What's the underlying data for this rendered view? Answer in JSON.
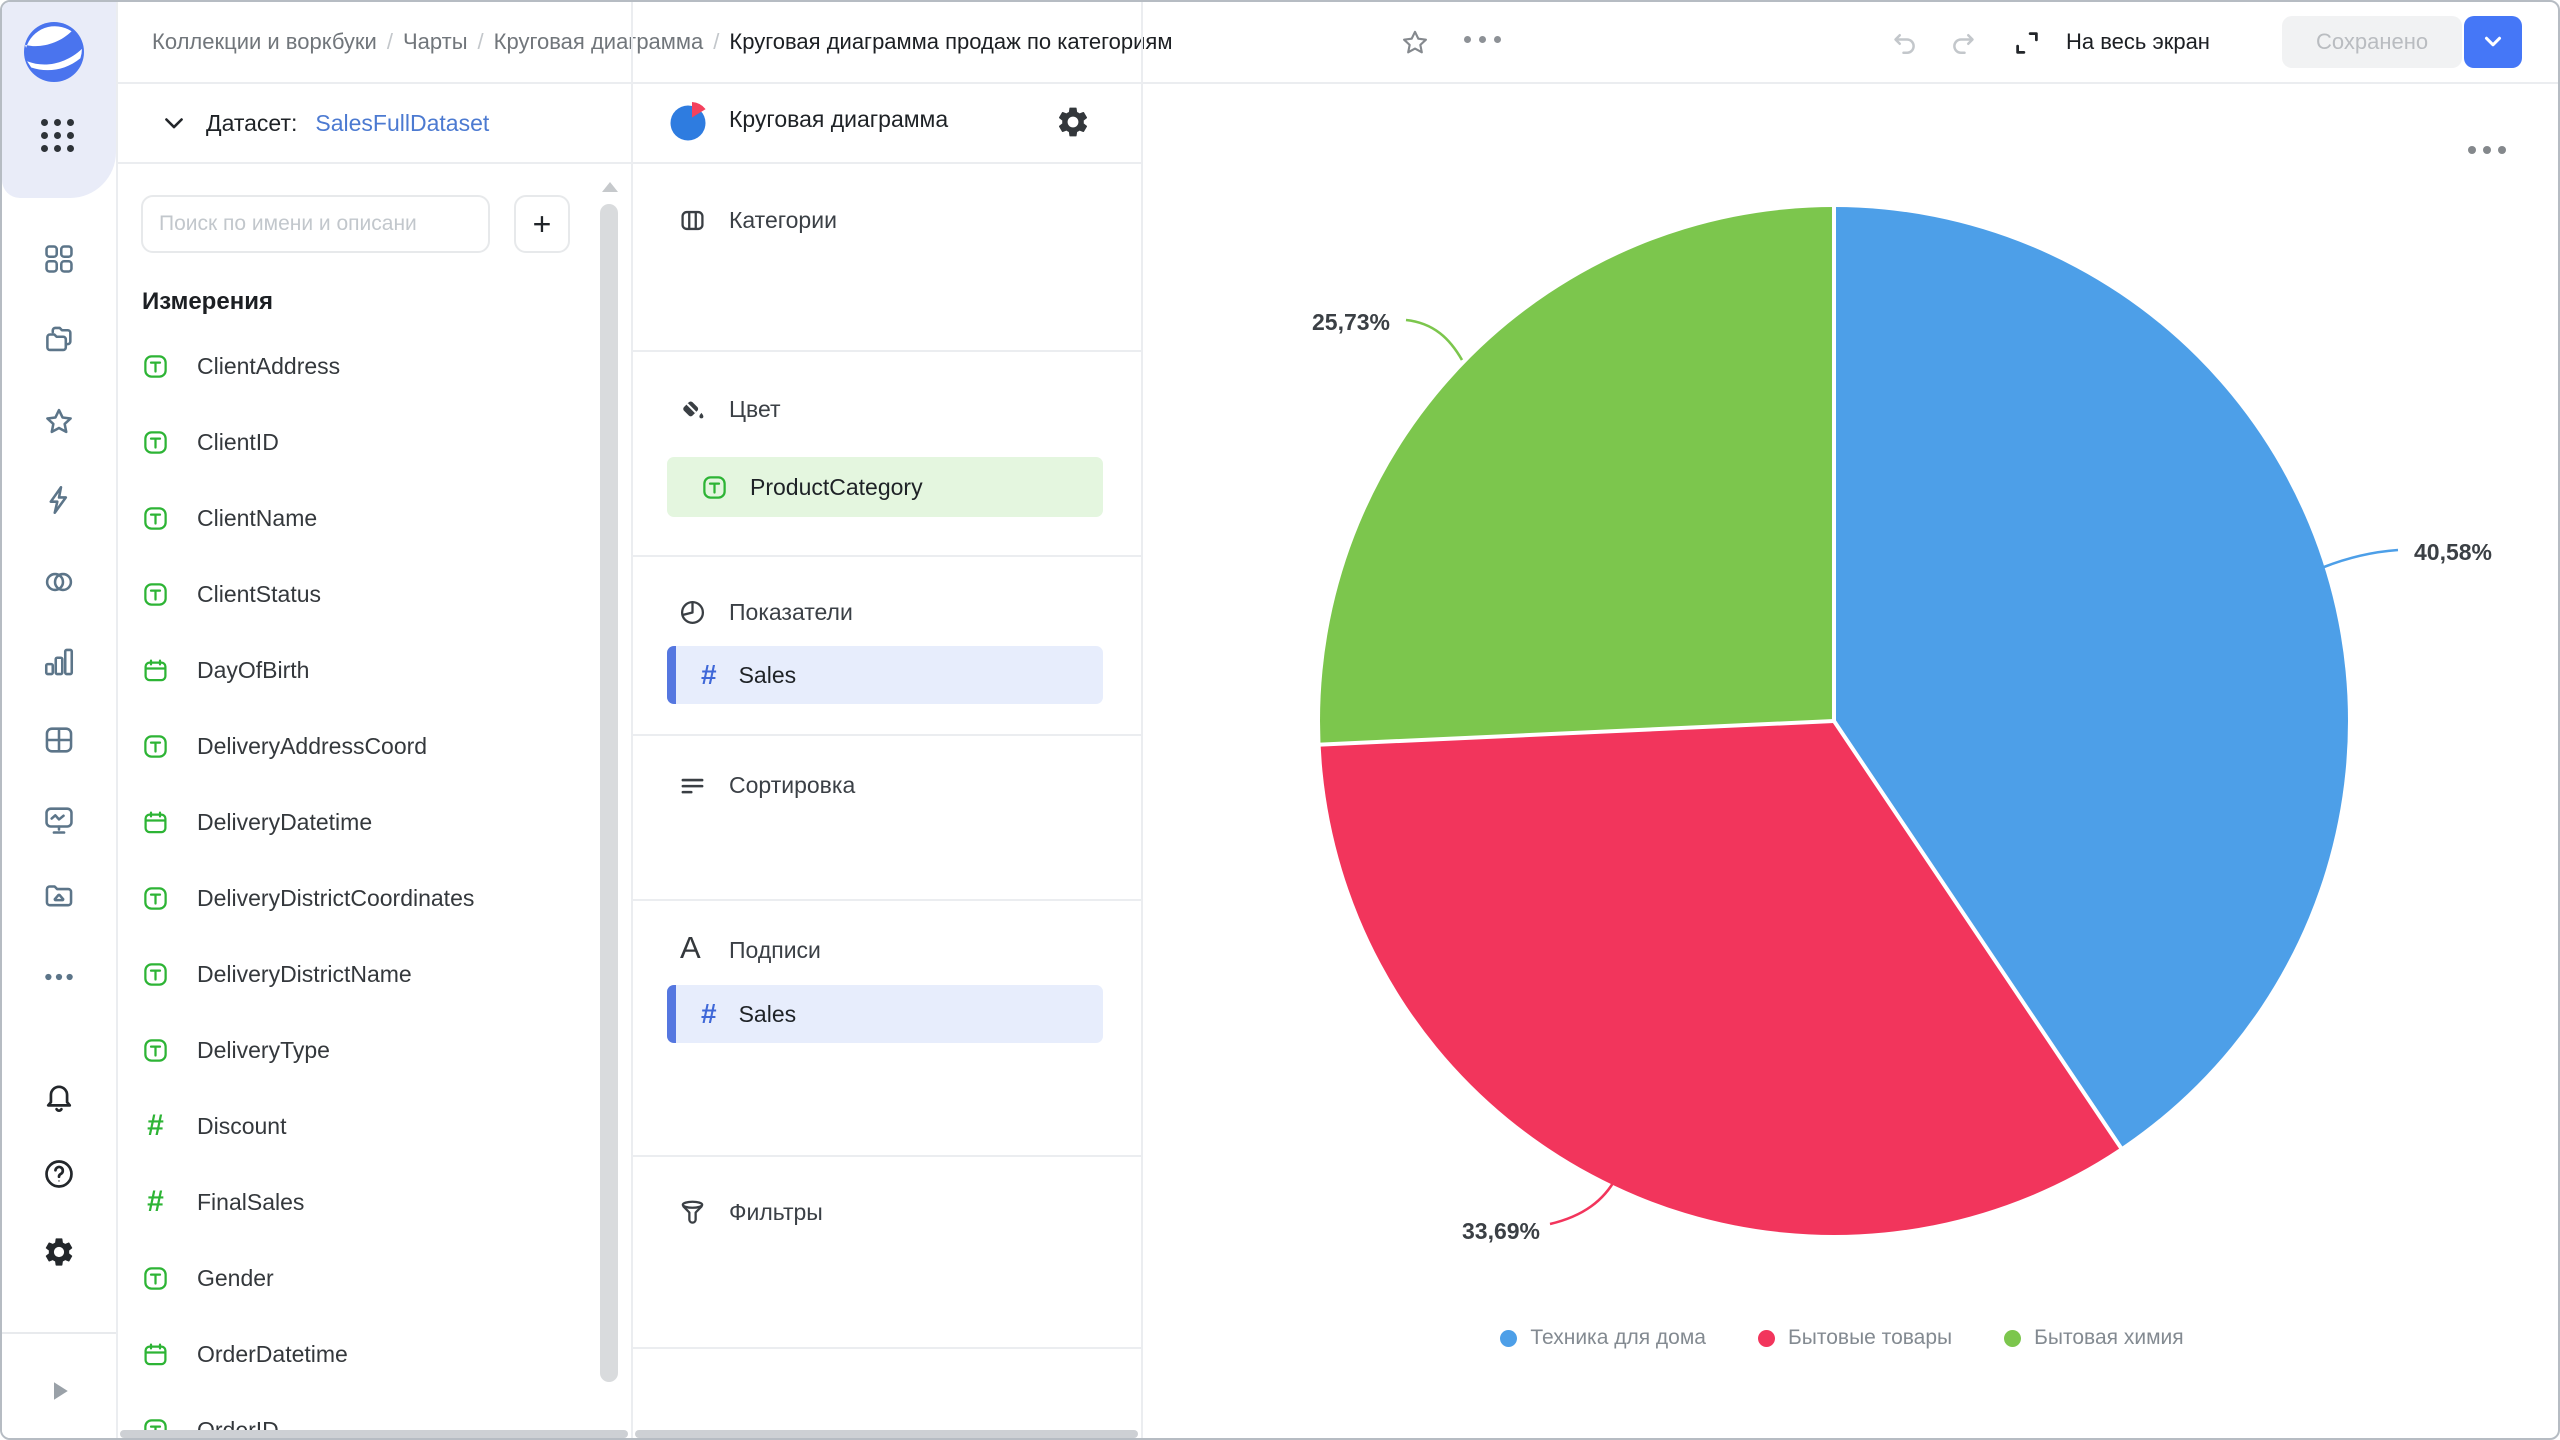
{
  "header": {
    "breadcrumbs": [
      "Коллекции и воркбуки",
      "Чарты",
      "Круговая диаграмма"
    ],
    "current": "Круговая диаграмма продаж по категориям",
    "fullscreen_label": "На весь экран",
    "saved_button": "Сохранено"
  },
  "dataset_panel": {
    "label": "Датасет:",
    "dataset_name": "SalesFullDataset",
    "search_placeholder": "Поиск по имени и описани",
    "section_title": "Измерения",
    "fields": [
      {
        "name": "ClientAddress",
        "type": "text"
      },
      {
        "name": "ClientID",
        "type": "text"
      },
      {
        "name": "ClientName",
        "type": "text"
      },
      {
        "name": "ClientStatus",
        "type": "text"
      },
      {
        "name": "DayOfBirth",
        "type": "date"
      },
      {
        "name": "DeliveryAddressCoord",
        "type": "text"
      },
      {
        "name": "DeliveryDatetime",
        "type": "date"
      },
      {
        "name": "DeliveryDistrictCoordinates",
        "type": "text"
      },
      {
        "name": "DeliveryDistrictName",
        "type": "text"
      },
      {
        "name": "DeliveryType",
        "type": "text"
      },
      {
        "name": "Discount",
        "type": "number"
      },
      {
        "name": "FinalSales",
        "type": "number"
      },
      {
        "name": "Gender",
        "type": "text"
      },
      {
        "name": "OrderDatetime",
        "type": "date"
      },
      {
        "name": "OrderID",
        "type": "text"
      }
    ]
  },
  "config_panel": {
    "chart_type": "Круговая диаграмма",
    "sections": {
      "categories": {
        "label": "Категории"
      },
      "color": {
        "label": "Цвет",
        "field": "ProductCategory",
        "field_type": "text"
      },
      "measures": {
        "label": "Показатели",
        "field": "Sales",
        "field_type": "number"
      },
      "sorting": {
        "label": "Сортировка"
      },
      "labels": {
        "label": "Подписи",
        "field": "Sales",
        "field_type": "number"
      },
      "filters": {
        "label": "Фильтры"
      }
    }
  },
  "icons": {
    "add_field": "+",
    "labels_section_glyph": "A"
  },
  "colors": {
    "accent_blue": "#4577f7",
    "link_blue": "#4c7ad1",
    "field_green": "#2db435",
    "pill_green_bg": "#e4f6df",
    "pill_blue_bg": "#e7edfc",
    "pill_blue_accent": "#5577e0"
  },
  "chart_data": {
    "type": "pie",
    "categories": [
      "Техника для дома",
      "Бытовые товары",
      "Бытовая химия"
    ],
    "values": [
      40.58,
      33.69,
      25.73
    ],
    "value_labels": [
      "40,58%",
      "33,69%",
      "25,73%"
    ],
    "colors": [
      "#4d9fe8",
      "#f2355c",
      "#7cc64d"
    ],
    "legend_position": "bottom",
    "start_angle_deg": 0,
    "direction": "clockwise"
  }
}
